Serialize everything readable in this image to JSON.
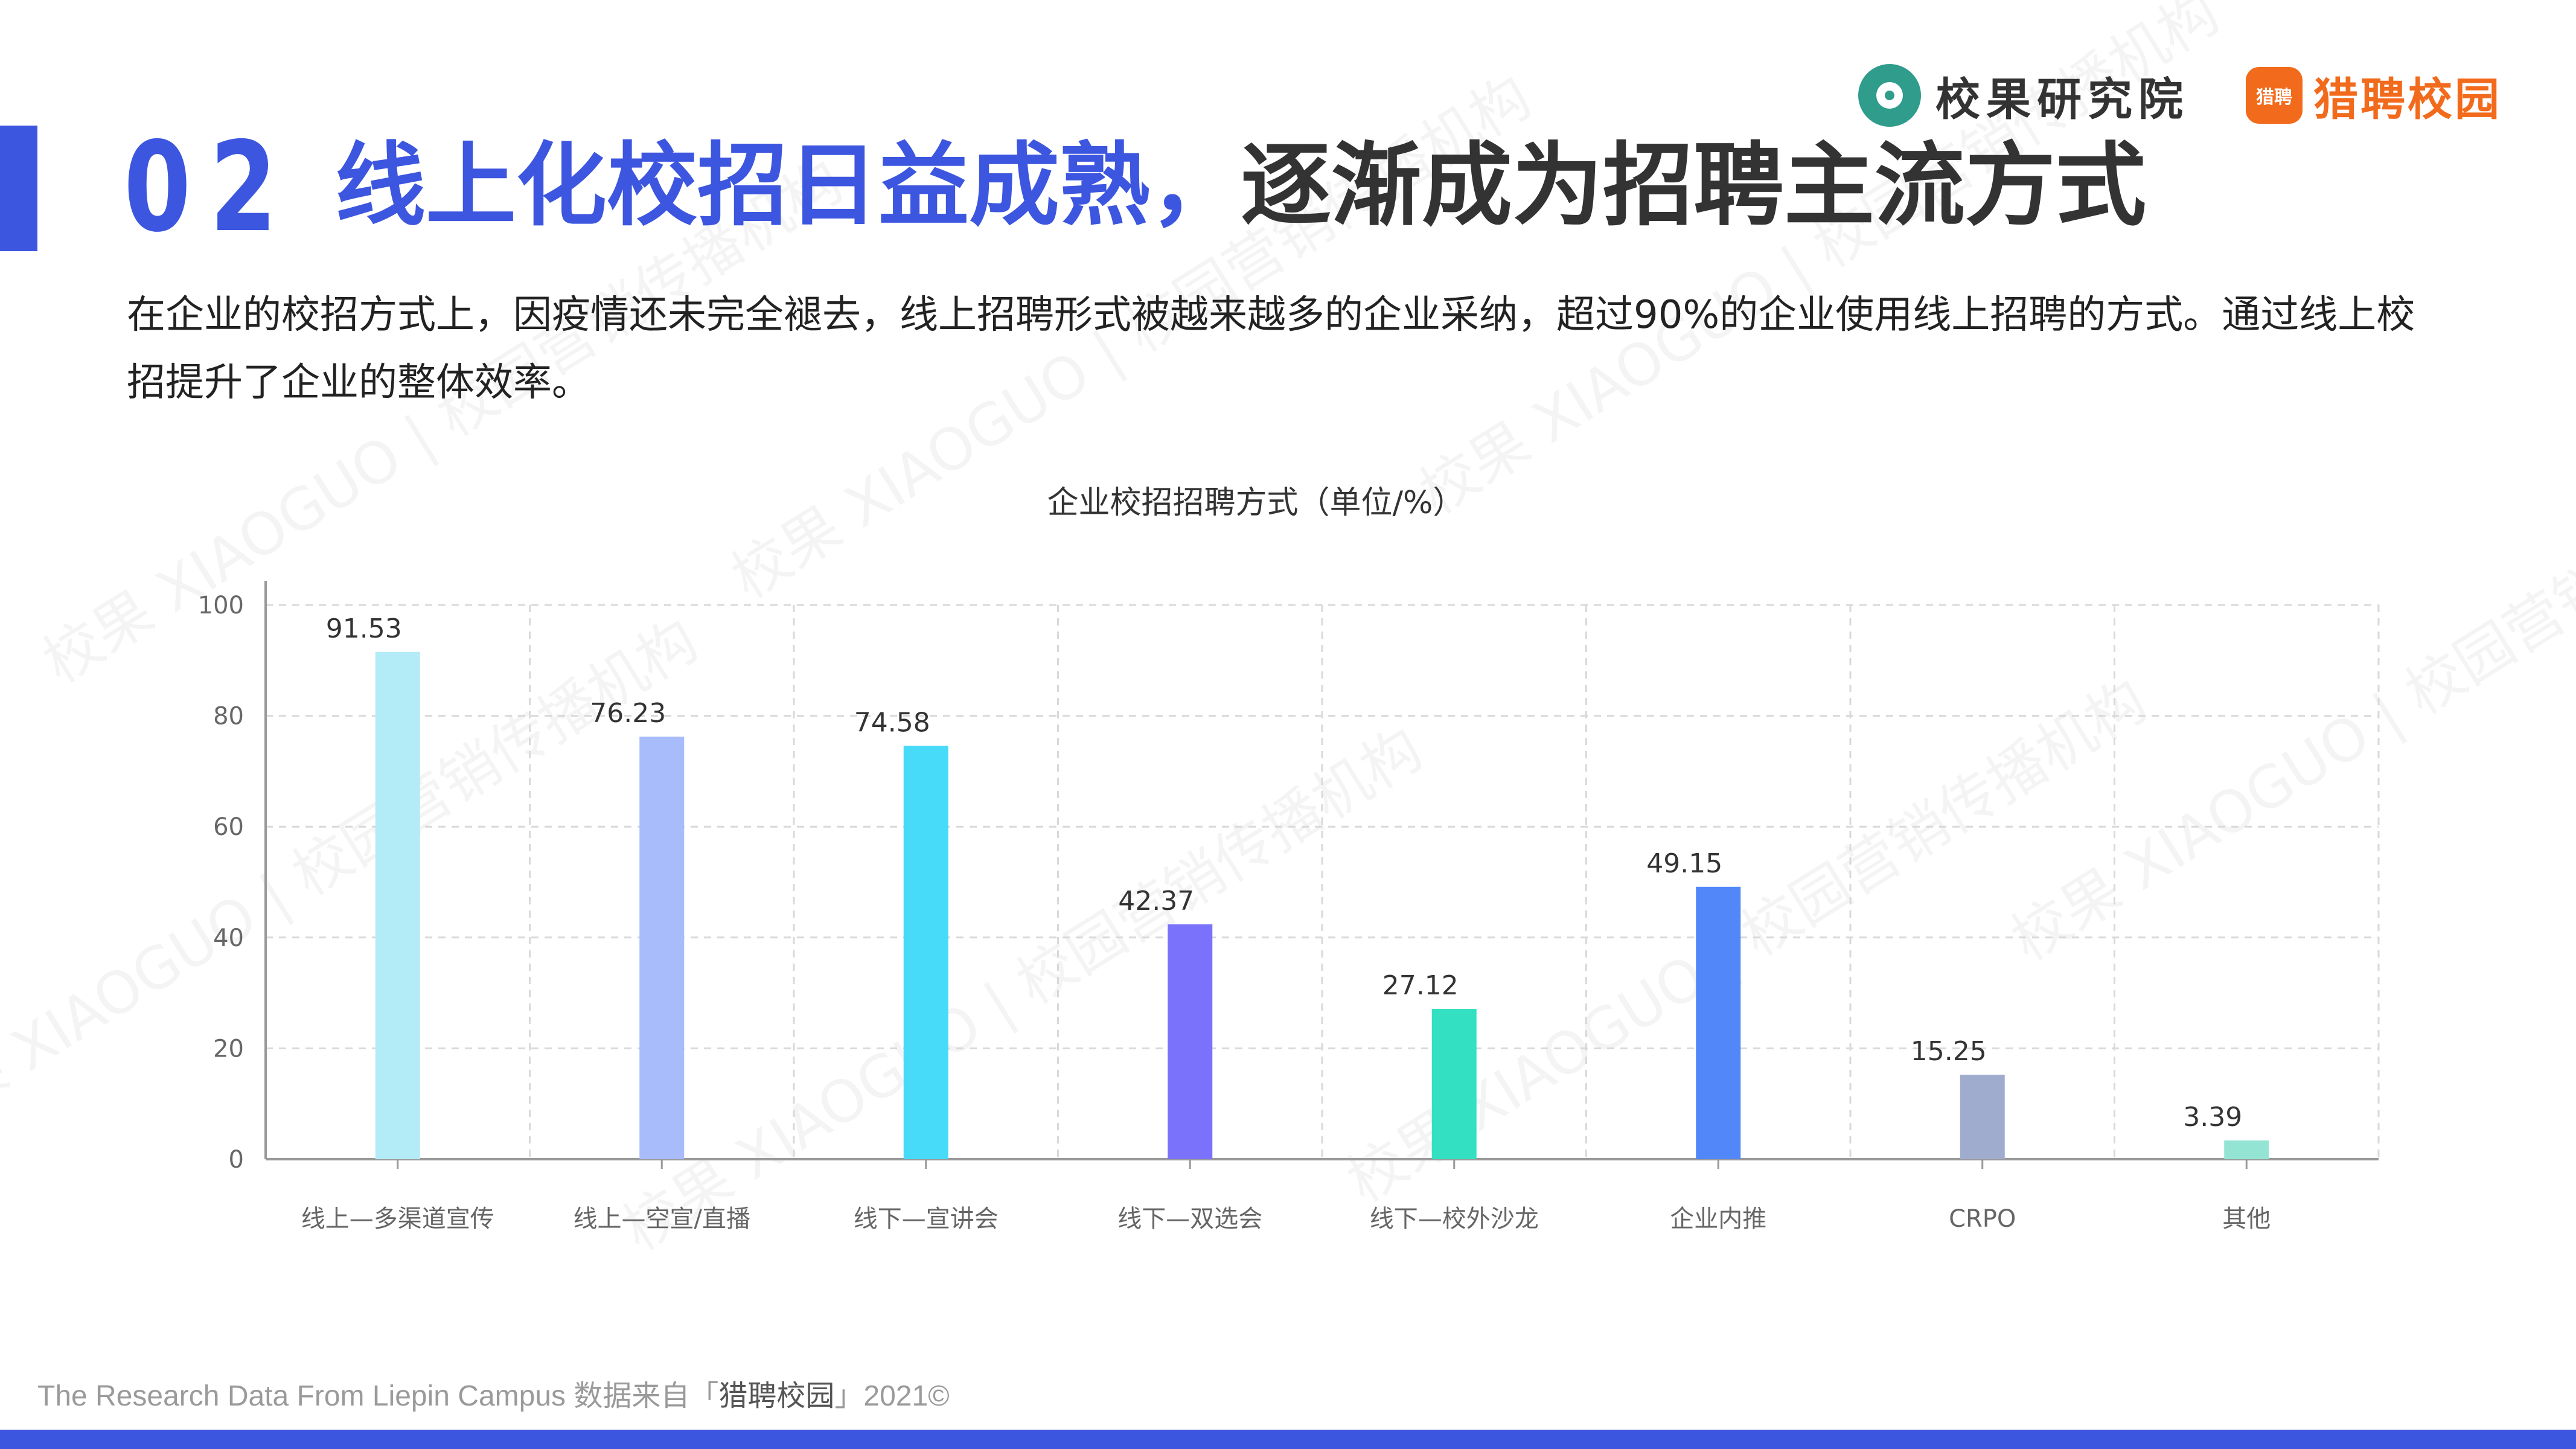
{
  "header": {
    "section_number": "02",
    "headline_blue": "线上化校招日益成熟，",
    "headline_dark": "逐渐成为招聘主流方式",
    "intro": "在企业的校招方式上，因疫情还未完全褪去，线上招聘形式被越来越多的企业采纳，超过90%的企业使用线上招聘的方式。通过线上校招提升了企业的整体效率。"
  },
  "logos": {
    "xiaoguo": "校果研究院",
    "liepin": "猎聘校园",
    "liepin_mark": "猎聘"
  },
  "watermark": {
    "text": "校果 XIAOGUO | 校园营销传播机构"
  },
  "footer": {
    "prefix": "The Research Data From Liepin Campus 数据来自「",
    "brand": "猎聘校园",
    "suffix": "」2021©"
  },
  "colors": {
    "accent": "#3d56e0",
    "liepin_orange": "#f26a1b",
    "xiaoguo_teal": "#2f9c8c"
  },
  "chart_data": {
    "type": "bar",
    "title": "企业校招招聘方式（单位/%）",
    "xlabel": "",
    "ylabel": "",
    "categories": [
      "线上—多渠道宣传",
      "线上—空宣/直播",
      "线下—宣讲会",
      "线下—双选会",
      "线下—校外沙龙",
      "企业内推",
      "CRPO",
      "其他"
    ],
    "values": [
      91.53,
      76.23,
      74.58,
      42.37,
      27.12,
      49.15,
      15.25,
      3.39
    ],
    "value_labels": [
      "91.53",
      "76.23",
      "74.58",
      "42.37",
      "27.12",
      "49.15",
      "15.25",
      "3.39"
    ],
    "bar_colors": [
      "#b3ecf6",
      "#a8bcfb",
      "#47daf9",
      "#7b72fb",
      "#33e0c2",
      "#5287fa",
      "#a0acce",
      "#93e4d3"
    ],
    "ylim": [
      0,
      100
    ],
    "yticks": [
      0,
      20,
      40,
      60,
      80,
      100
    ],
    "grid": true,
    "legend": "none"
  }
}
